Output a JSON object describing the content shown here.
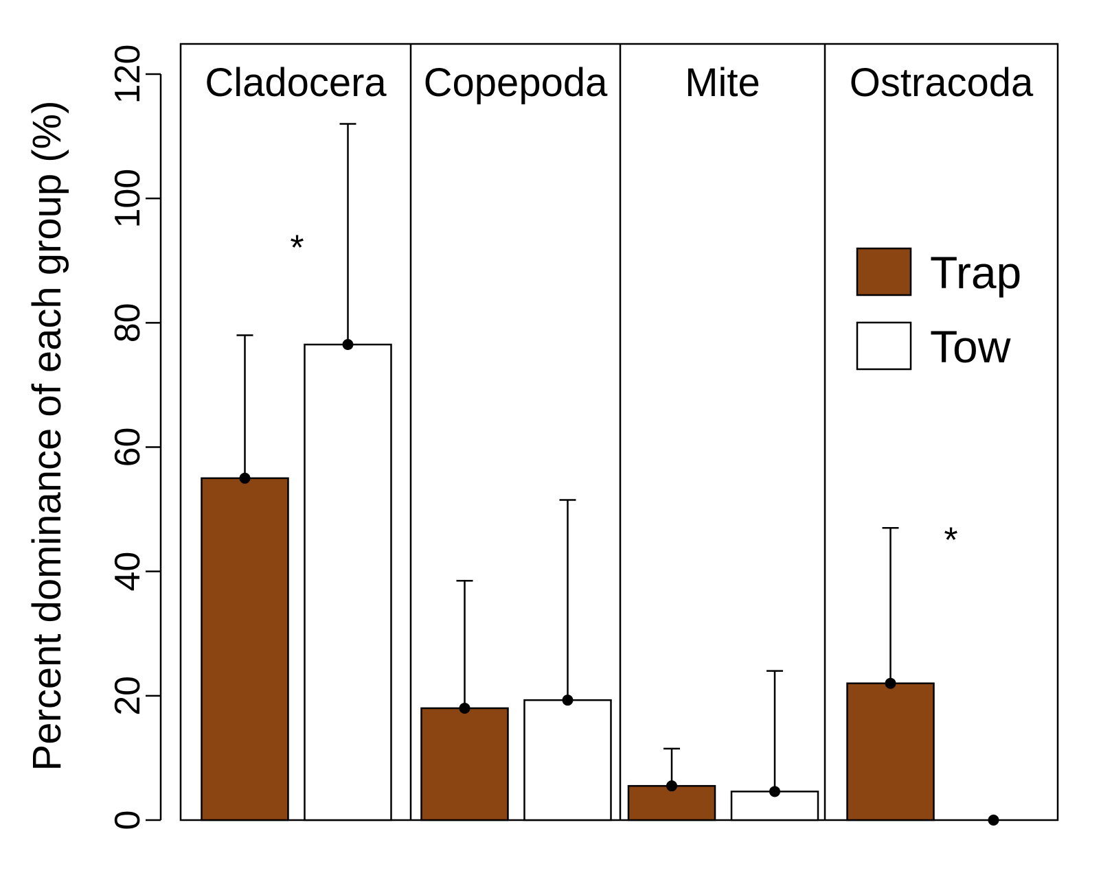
{
  "chart_data": {
    "type": "bar",
    "ylabel": "Percent dominance of each group (%)",
    "xlabel": "",
    "ylim": [
      0,
      120
    ],
    "yticks": [
      0,
      20,
      40,
      60,
      80,
      100,
      120
    ],
    "grid": false,
    "legend_position": "right",
    "categories": [
      "Cladocera",
      "Copepoda",
      "Mite",
      "Ostracoda"
    ],
    "series": [
      {
        "name": "Trap",
        "color": "#8B4513",
        "values": [
          55,
          18,
          5.5,
          22
        ],
        "error_upper": [
          78,
          38.5,
          11.5,
          47
        ]
      },
      {
        "name": "Tow",
        "color": "#FFFFFF",
        "values": [
          76.5,
          19.3,
          4.6,
          0
        ],
        "error_upper": [
          112,
          51.5,
          24,
          0
        ]
      }
    ],
    "annotations": [
      {
        "text": "*",
        "category": "Cladocera",
        "y": 93
      },
      {
        "text": "*",
        "category": "Ostracoda",
        "y": 46
      }
    ]
  }
}
